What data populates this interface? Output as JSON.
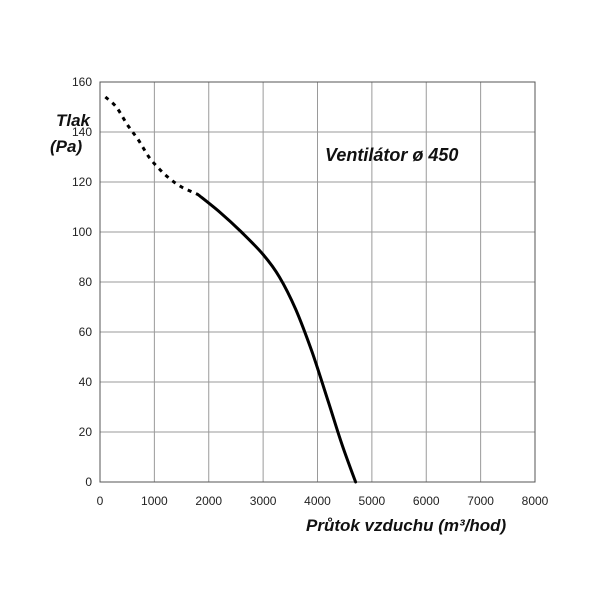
{
  "chart_data": {
    "type": "line",
    "title": "Ventilátor ø 450",
    "ylabel_line1": "Tlak",
    "ylabel_line2": "(Pa)",
    "xlabel": "Průtok vzduchu (m³/hod)",
    "xlim": [
      0,
      8000
    ],
    "ylim": [
      0,
      160
    ],
    "x_ticks": [
      "0",
      "1000",
      "2000",
      "3000",
      "4000",
      "5000",
      "6000",
      "7000",
      "8000"
    ],
    "y_ticks": [
      "0",
      "20",
      "40",
      "60",
      "80",
      "100",
      "120",
      "140",
      "160"
    ],
    "grid": true,
    "series": [
      {
        "style": "dotted",
        "x": [
          100,
          300,
          500,
          700,
          900,
          1100,
          1300,
          1500,
          1700,
          1800
        ],
        "y": [
          154,
          150,
          143,
          137,
          130,
          125,
          121,
          118,
          116,
          115
        ]
      },
      {
        "style": "solid",
        "x": [
          1800,
          2200,
          2600,
          3000,
          3300,
          3600,
          3900,
          4200,
          4450,
          4700
        ],
        "y": [
          115,
          108,
          100,
          91,
          82,
          69,
          52,
          32,
          15,
          0
        ]
      }
    ],
    "colors": {
      "line": "#000000",
      "grid": "#9a9a9a",
      "frame": "#555555"
    }
  }
}
